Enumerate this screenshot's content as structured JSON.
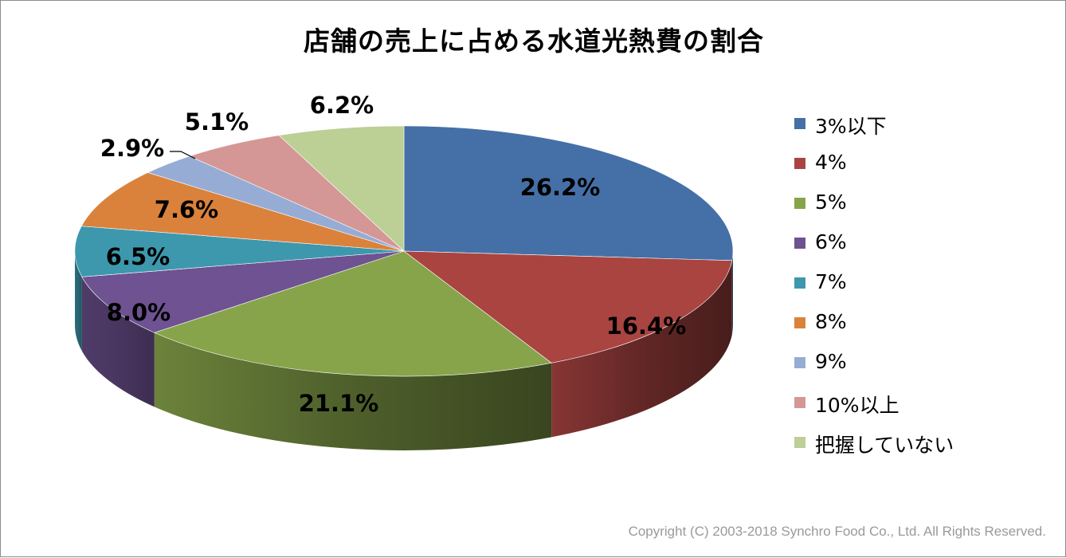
{
  "chart_data": {
    "type": "pie",
    "title": "店舗の売上に占める水道光熱費の割合",
    "categories": [
      "3%以下",
      "4%",
      "5%",
      "6%",
      "7%",
      "8%",
      "9%",
      "10%以上",
      "把握していない"
    ],
    "values": [
      26.2,
      16.4,
      21.1,
      8.0,
      6.5,
      7.6,
      2.9,
      5.1,
      6.2
    ],
    "data_labels": [
      "26.2%",
      "16.4%",
      "21.1%",
      "8.0%",
      "6.5%",
      "7.6%",
      "2.9%",
      "5.1%",
      "6.2%"
    ],
    "colors": [
      "#4570a7",
      "#a94441",
      "#87a44a",
      "#6e5291",
      "#3d98ad",
      "#da823c",
      "#97acd4",
      "#d49795",
      "#bccf95"
    ],
    "legend_position": "right",
    "style": "3d-tilted"
  },
  "copyright": "Copyright (C) 2003-2018  Synchro Food Co., Ltd. All Rights Reserved."
}
